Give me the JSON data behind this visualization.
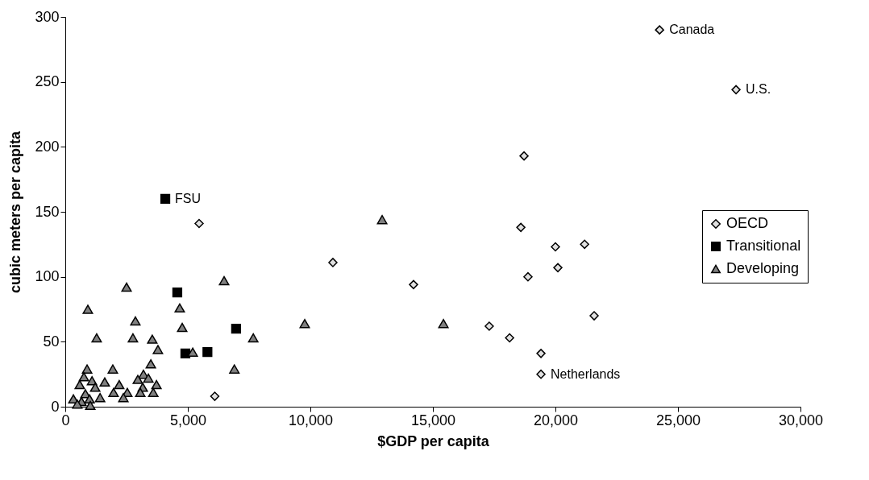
{
  "chart_data": {
    "type": "scatter",
    "xlabel": "$GDP per capita",
    "ylabel": "cubic meters per capita",
    "xlim": [
      0,
      30000
    ],
    "xticks": [
      0,
      {
        "value": 5000,
        "label": "5,000"
      },
      {
        "value": 10000,
        "label": "10,000"
      },
      {
        "value": 15000,
        "label": "15,000"
      },
      {
        "value": 20000,
        "label": "20,000"
      },
      {
        "value": 25000,
        "label": "25,000"
      },
      {
        "value": 30000,
        "label": "30,000"
      }
    ],
    "ylim": [
      0,
      300
    ],
    "yticks": [
      0,
      50,
      100,
      150,
      200,
      250,
      300
    ],
    "grid": false,
    "legend": "right",
    "series": [
      {
        "name": "OECD",
        "color": "#e0e0e0",
        "marker": "diamond",
        "x": [
          24250,
          27370,
          18720,
          18590,
          20000,
          21190,
          20100,
          18880,
          21580,
          17300,
          18130,
          19410,
          19410,
          10920,
          14210,
          5460,
          6100
        ],
        "values": [
          290,
          244,
          193,
          138,
          123,
          125,
          107,
          100,
          70,
          62,
          53,
          41,
          25,
          111,
          94,
          141,
          8
        ]
      },
      {
        "name": "Transitional",
        "color": "#000000",
        "marker": "square",
        "x": [
          4080,
          4570,
          4900,
          5800,
          6970
        ],
        "values": [
          160,
          88,
          41,
          42,
          60
        ]
      },
      {
        "name": "Developing",
        "color": "#808080",
        "marker": "triangle",
        "x": [
          12930,
          9770,
          15430,
          6480,
          4670,
          4770,
          7670,
          6900,
          5200,
          2500,
          920,
          2860,
          1280,
          2760,
          3550,
          3780,
          3490,
          1940,
          890,
          3190,
          3390,
          2960,
          1610,
          3720,
          2200,
          1090,
          590,
          760,
          3160,
          1970,
          2530,
          3590,
          3060,
          2370,
          1420,
          1220,
          820,
          330,
          660,
          990,
          1020,
          490
        ],
        "values": [
          144,
          64,
          64,
          97,
          76,
          61,
          53,
          29,
          42,
          92,
          75,
          66,
          53,
          53,
          52,
          44,
          33,
          29,
          29,
          25,
          22,
          21,
          19,
          17,
          17,
          20,
          17,
          23,
          15,
          11,
          11,
          11,
          11,
          7,
          7,
          15,
          10,
          6,
          4,
          6,
          1,
          2
        ]
      }
    ],
    "annotations": [
      {
        "text": "Canada",
        "x": 24250,
        "y": 290
      },
      {
        "text": "U.S.",
        "x": 27370,
        "y": 244
      },
      {
        "text": "Netherlands",
        "x": 19410,
        "y": 25
      },
      {
        "text": "FSU",
        "x": 4080,
        "y": 160
      }
    ]
  }
}
